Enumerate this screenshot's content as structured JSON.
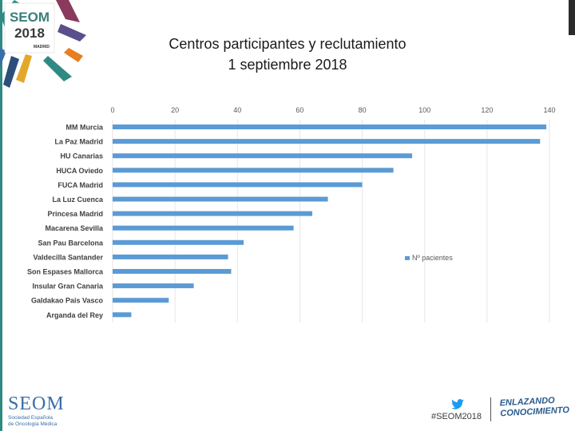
{
  "header": {
    "logo_text": "SEOM",
    "logo_year": "2018",
    "logo_city": "MADRID",
    "title_line1": "Centros participantes y reclutamiento",
    "title_line2": "1 septiembre 2018"
  },
  "chart_data": {
    "type": "bar",
    "orientation": "horizontal",
    "categories": [
      "MM Murcia",
      "La Paz Madrid",
      "HU Canarias",
      "HUCA Oviedo",
      "FUCA Madrid",
      "La Luz Cuenca",
      "Princesa Madrid",
      "Macarena Sevilla",
      "San Pau Barcelona",
      "Valdecilla Santander",
      "Son Espases Mallorca",
      "Insular Gran Canaria",
      "Galdakao Pais Vasco",
      "Arganda del Rey"
    ],
    "series": [
      {
        "name": "Nº pacientes",
        "values": [
          139,
          137,
          96,
          90,
          80,
          69,
          64,
          58,
          42,
          37,
          38,
          26,
          18,
          6
        ]
      }
    ],
    "xlim": [
      0,
      140
    ],
    "ticks": [
      0,
      20,
      40,
      60,
      80,
      100,
      120,
      140
    ],
    "tick_labels": [
      "0",
      "20",
      "40",
      "60",
      "80",
      "100",
      "120",
      "140"
    ],
    "axis_position": "top",
    "grid": true,
    "legend_position": "right",
    "bar_color": "#5b9bd5"
  },
  "footer": {
    "org_name": "SEOM",
    "org_line1": "Sociedad Española",
    "org_line2": "de Oncología Médica",
    "hashtag": "#SEOM2018",
    "tagline_line1": "ENLAZANDO",
    "tagline_line2": "CONOCIMIENTO"
  }
}
